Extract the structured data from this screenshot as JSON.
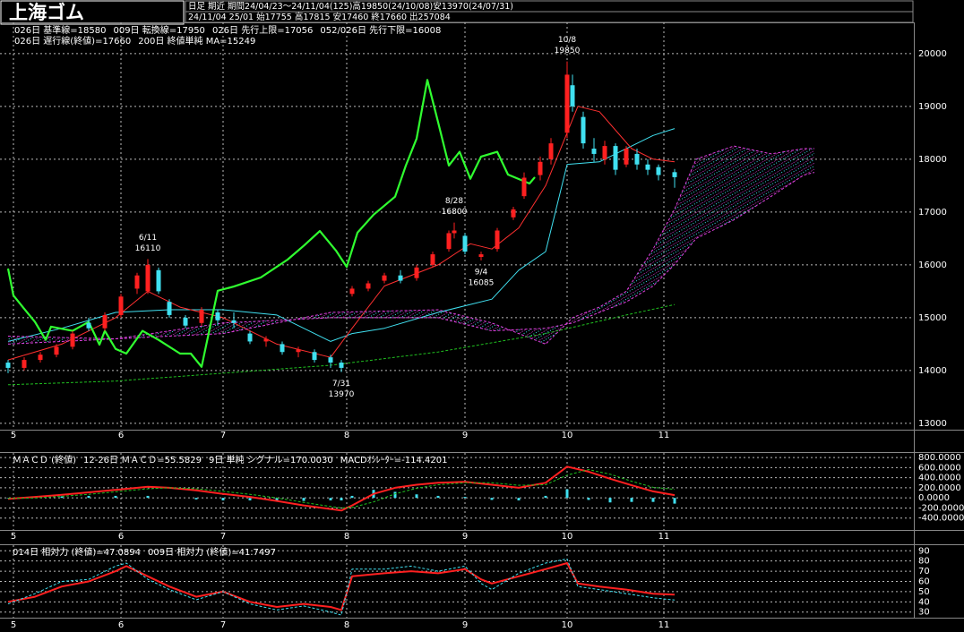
{
  "header": {
    "symbol": "上海ゴム",
    "info_line1": "日足 期近 期間24/04/23～24/11/04(125)高19850(24/10/08)安13970(24/07/31)",
    "info_line2": "24/11/04 25/01 始17755 高17815 安17460 終17660 出257084"
  },
  "chart_data": [
    {
      "type": "candlestick",
      "xlim": [
        -1.5,
        168.5
      ],
      "xticks": [
        {
          "value": 1,
          "label": "5"
        },
        {
          "value": 21,
          "label": "6"
        },
        {
          "value": 40,
          "label": "7"
        },
        {
          "value": 63,
          "label": "8"
        },
        {
          "value": 85,
          "label": "9"
        },
        {
          "value": 104,
          "label": "10"
        },
        {
          "value": 122,
          "label": "11"
        }
      ],
      "ylim": [
        12880,
        20590
      ],
      "yticks": [
        13000,
        14000,
        15000,
        16000,
        17000,
        18000,
        19000,
        20000
      ],
      "grid": true,
      "up_color": "#ff2020",
      "down_color": "#40e0f0",
      "candles": {
        "x": [
          0,
          3,
          6,
          9,
          12,
          15,
          18,
          21,
          24,
          26,
          28,
          30,
          33,
          36,
          39,
          42,
          45,
          48,
          51,
          54,
          57,
          60,
          62,
          64,
          67,
          70,
          73,
          76,
          79,
          82,
          83,
          85,
          88,
          91,
          94,
          96,
          99,
          101,
          104,
          105,
          107,
          109,
          111,
          113,
          115,
          117,
          119,
          121,
          124
        ],
        "open": [
          14150,
          14050,
          14200,
          14300,
          14450,
          14900,
          14800,
          15050,
          15550,
          15500,
          15900,
          15300,
          15000,
          14900,
          15100,
          14950,
          14700,
          14550,
          14500,
          14350,
          14350,
          14250,
          14150,
          15450,
          15550,
          15700,
          15800,
          15750,
          16000,
          16300,
          16600,
          16550,
          16150,
          16300,
          16900,
          17300,
          17700,
          18000,
          18500,
          19400,
          18800,
          18200,
          18000,
          18250,
          17900,
          18100,
          17900,
          17850,
          17755
        ],
        "high": [
          14200,
          14250,
          14350,
          14500,
          14750,
          15000,
          15100,
          15450,
          15850,
          16110,
          15950,
          15350,
          15050,
          15200,
          15150,
          15100,
          14750,
          14650,
          14550,
          14450,
          14400,
          14300,
          14200,
          15600,
          15700,
          15850,
          15900,
          16000,
          16250,
          16650,
          16800,
          16600,
          16250,
          16700,
          17100,
          17750,
          18050,
          18400,
          19850,
          19600,
          18900,
          18400,
          18350,
          18300,
          18250,
          18200,
          18000,
          17900,
          17815
        ],
        "low": [
          13950,
          14000,
          14150,
          14250,
          14400,
          14750,
          14750,
          15000,
          15450,
          15450,
          15450,
          15000,
          14800,
          14850,
          14850,
          14800,
          14500,
          14450,
          14300,
          14250,
          14150,
          14050,
          13970,
          15400,
          15500,
          15650,
          15650,
          15700,
          15950,
          16250,
          16500,
          16200,
          16085,
          16250,
          16850,
          17250,
          17600,
          17900,
          18400,
          18900,
          18200,
          17950,
          17900,
          17700,
          17850,
          17800,
          17700,
          17600,
          17460
        ],
        "close": [
          14050,
          14200,
          14300,
          14450,
          14700,
          14800,
          15050,
          15400,
          15800,
          16000,
          15500,
          15050,
          14850,
          15150,
          14950,
          14900,
          14550,
          14600,
          14350,
          14400,
          14200,
          14150,
          14050,
          15550,
          15650,
          15800,
          15700,
          15950,
          16200,
          16600,
          16650,
          16250,
          16200,
          16650,
          17050,
          17650,
          17950,
          18300,
          19600,
          19000,
          18300,
          18100,
          18250,
          17800,
          18200,
          17900,
          17800,
          17700,
          17660
        ]
      },
      "series": [
        {
          "name": "026日 基準線=18580",
          "color": "#40e0f0",
          "width": 1,
          "x": [
            0,
            10,
            20,
            30,
            40,
            50,
            60,
            64,
            70,
            80,
            90,
            95,
            100,
            104,
            110,
            120,
            124
          ],
          "values": [
            14550,
            14800,
            15100,
            15150,
            15150,
            15050,
            14550,
            14700,
            14800,
            15100,
            15350,
            15900,
            16250,
            17900,
            17950,
            18450,
            18580
          ]
        },
        {
          "name": "009日 転換線=17950",
          "color": "#ff3030",
          "width": 1,
          "x": [
            0,
            10,
            20,
            26,
            32,
            40,
            50,
            60,
            64,
            70,
            80,
            86,
            90,
            95,
            100,
            104,
            106,
            110,
            116,
            120,
            124
          ],
          "values": [
            14200,
            14500,
            15000,
            15500,
            15200,
            15000,
            14500,
            14250,
            14800,
            15600,
            16000,
            16400,
            16300,
            16700,
            17500,
            18500,
            19000,
            18900,
            18200,
            18000,
            17950
          ]
        },
        {
          "name": "026日 先行上限=17056",
          "color": "#e040e0",
          "width": 1,
          "dash": true,
          "x": [
            0,
            20,
            40,
            60,
            80,
            90,
            100,
            105,
            110,
            115,
            120,
            124,
            128,
            135,
            142,
            148,
            150
          ],
          "values": [
            14650,
            14600,
            14700,
            15100,
            15150,
            14900,
            14500,
            15000,
            15200,
            15500,
            16300,
            17056,
            18000,
            18250,
            18100,
            18200,
            18200
          ]
        },
        {
          "name": "052/026日 先行下限=16008",
          "color": "#e040e0",
          "width": 1,
          "dash": true,
          "x": [
            0,
            20,
            40,
            60,
            80,
            90,
            100,
            105,
            110,
            115,
            120,
            124,
            128,
            135,
            142,
            148,
            150
          ],
          "values": [
            14500,
            14600,
            14900,
            15000,
            15000,
            14750,
            14800,
            14900,
            15100,
            15300,
            15600,
            16008,
            16500,
            16850,
            17300,
            17700,
            17750
          ]
        },
        {
          "name": "026日 遅行線(終値)=17660",
          "color": "#30ff30",
          "width": 2.2,
          "x": [
            0,
            1,
            3,
            5,
            7,
            8,
            12,
            15,
            17,
            18,
            20,
            22,
            25,
            28,
            32,
            34,
            36,
            39,
            42,
            47,
            52,
            55,
            58,
            61,
            63,
            65,
            68,
            72,
            74,
            76,
            78,
            80,
            82,
            84,
            86,
            88,
            91,
            93,
            97,
            98
          ],
          "values": [
            15930,
            15420,
            15170,
            14920,
            14580,
            14830,
            14750,
            14920,
            14490,
            14750,
            14410,
            14320,
            14750,
            14580,
            14320,
            14320,
            14070,
            15510,
            15590,
            15760,
            16100,
            16360,
            16640,
            16270,
            15960,
            16610,
            16950,
            17290,
            17880,
            18390,
            19500,
            18700,
            17880,
            18140,
            17630,
            18050,
            18140,
            17710,
            17540,
            17660
          ]
        },
        {
          "name": "200日 終値単純 MA=15249",
          "color": "#20c020",
          "width": 1,
          "dash": true,
          "x": [
            0,
            20,
            40,
            60,
            80,
            100,
            115,
            124
          ],
          "values": [
            13730,
            13800,
            13950,
            14100,
            14350,
            14700,
            15050,
            15249
          ]
        }
      ],
      "cloud": {
        "upper_series": 2,
        "lower_series": 3
      },
      "annotations": [
        {
          "date": "6/11",
          "value": 16110,
          "x": 26,
          "position": "above",
          "color": "#ff3030"
        },
        {
          "date": "7/31",
          "value": 13970,
          "x": 62,
          "position": "below",
          "color": "#40e0f0"
        },
        {
          "date": "8/28",
          "value": 16800,
          "x": 83,
          "position": "above",
          "color": "#ff3030"
        },
        {
          "date": "9/4",
          "value": 16085,
          "x": 88,
          "position": "below",
          "color": "#40e0f0"
        },
        {
          "date": "10/8",
          "value": 19850,
          "x": 104,
          "position": "above",
          "color": "#ff3030"
        }
      ]
    },
    {
      "type": "macd",
      "title": "ＭＡＣＤ (終値)",
      "xlim": [
        -1.5,
        168.5
      ],
      "xticks": [
        {
          "value": 1,
          "label": "5"
        },
        {
          "value": 21,
          "label": "6"
        },
        {
          "value": 40,
          "label": "7"
        },
        {
          "value": 63,
          "label": "8"
        },
        {
          "value": 85,
          "label": "9"
        },
        {
          "value": 104,
          "label": "10"
        },
        {
          "value": 122,
          "label": "11"
        }
      ],
      "ylim": [
        -636,
        891
      ],
      "yticks": [
        {
          "value": 800,
          "label": "800.0000"
        },
        {
          "value": 600,
          "label": "600.0000"
        },
        {
          "value": 400,
          "label": "400.0000"
        },
        {
          "value": 200,
          "label": "200.0000"
        },
        {
          "value": 0,
          "label": "0.0000"
        },
        {
          "value": -200,
          "label": "-200.0000"
        },
        {
          "value": -400,
          "label": "-400.0000"
        }
      ],
      "grid": true,
      "x": [
        0,
        5,
        10,
        15,
        20,
        26,
        30,
        35,
        40,
        45,
        50,
        55,
        60,
        62,
        64,
        68,
        72,
        76,
        80,
        85,
        90,
        95,
        100,
        104,
        108,
        112,
        116,
        120,
        124
      ],
      "series": [
        {
          "name": "12-26日 ＭＡＣＤ=55.5829",
          "color": "#ff2020",
          "width": 2,
          "values": [
            -20,
            20,
            60,
            110,
            160,
            220,
            200,
            150,
            80,
            20,
            -60,
            -150,
            -220,
            -250,
            -150,
            80,
            200,
            260,
            300,
            320,
            260,
            200,
            300,
            620,
            520,
            380,
            250,
            130,
            55.5829
          ]
        },
        {
          "name": "9日 単純 シグナル=170.0030",
          "color": "#20c020",
          "width": 1,
          "dash": true,
          "values": [
            -10,
            0,
            30,
            70,
            120,
            180,
            200,
            180,
            130,
            70,
            0,
            -90,
            -170,
            -200,
            -190,
            -80,
            80,
            190,
            260,
            300,
            300,
            250,
            260,
            450,
            560,
            470,
            330,
            210,
            170.003
          ]
        },
        {
          "name": "MACDｵｼﾚｰﾀｰ=-114.4201",
          "color": "#40e0f0",
          "kind": "bar",
          "values": [
            -10,
            20,
            30,
            40,
            40,
            40,
            0,
            -30,
            -50,
            -50,
            -60,
            -60,
            -50,
            -50,
            40,
            160,
            120,
            70,
            40,
            20,
            -40,
            -50,
            40,
            170,
            -40,
            -90,
            -80,
            -80,
            -114.4201
          ]
        }
      ]
    },
    {
      "type": "line",
      "xlim": [
        -1.5,
        168.5
      ],
      "xticks": [
        {
          "value": 1,
          "label": "5"
        },
        {
          "value": 21,
          "label": "6"
        },
        {
          "value": 40,
          "label": "7"
        },
        {
          "value": 63,
          "label": "8"
        },
        {
          "value": 85,
          "label": "9"
        },
        {
          "value": 104,
          "label": "10"
        },
        {
          "value": 122,
          "label": "11"
        }
      ],
      "ylim": [
        24.5,
        95.5
      ],
      "yticks": [
        90,
        80,
        70,
        60,
        50,
        40,
        30
      ],
      "grid": true,
      "x": [
        0,
        5,
        10,
        15,
        20,
        22,
        26,
        30,
        35,
        40,
        45,
        50,
        55,
        60,
        62,
        64,
        70,
        75,
        80,
        85,
        88,
        90,
        95,
        100,
        104,
        106,
        110,
        115,
        120,
        124
      ],
      "series": [
        {
          "name": "014日 相対力 (終値)=47.0894",
          "color": "#ff2020",
          "width": 2,
          "values": [
            40,
            45,
            55,
            60,
            70,
            75,
            65,
            55,
            45,
            50,
            40,
            35,
            38,
            35,
            32,
            65,
            68,
            70,
            68,
            72,
            62,
            58,
            65,
            72,
            78,
            58,
            55,
            52,
            48,
            47.0894
          ]
        },
        {
          "name": "009日 相対力 (終値)=41.7497",
          "color": "#40e0f0",
          "width": 1,
          "dash": true,
          "values": [
            38,
            48,
            60,
            62,
            75,
            78,
            62,
            52,
            42,
            50,
            38,
            32,
            36,
            30,
            27,
            72,
            72,
            75,
            70,
            75,
            58,
            52,
            68,
            78,
            82,
            55,
            52,
            48,
            44,
            41.7497
          ]
        }
      ]
    }
  ]
}
